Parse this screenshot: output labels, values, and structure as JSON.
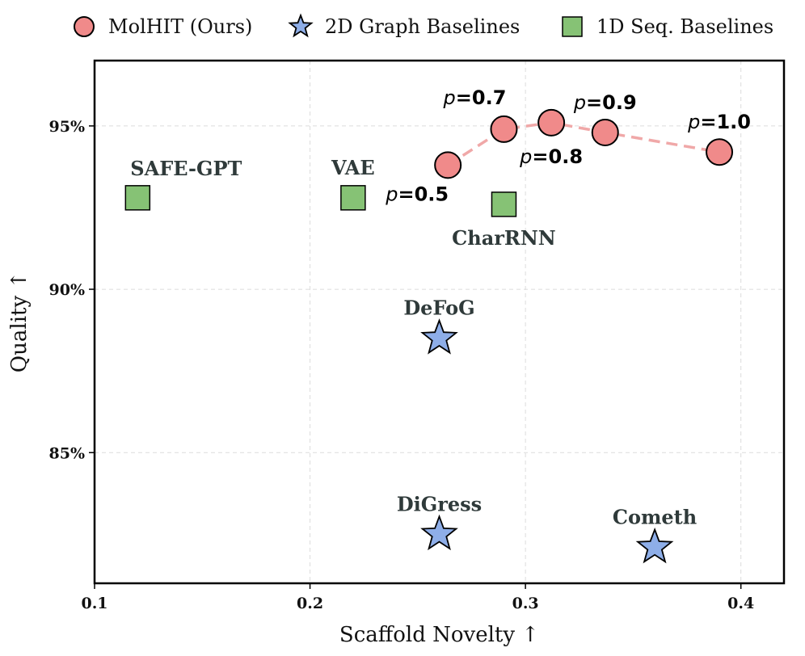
{
  "chart_data": {
    "type": "scatter",
    "xlabel": "Scaffold Novelty",
    "ylabel": "Quality",
    "axis_arrow": "↑",
    "xlim": [
      0.1,
      0.42
    ],
    "ylim": [
      81.0,
      97.0
    ],
    "xticks": [
      0.1,
      0.2,
      0.3,
      0.4
    ],
    "xtick_labels": [
      "0.1",
      "0.2",
      "0.3",
      "0.4"
    ],
    "yticks": [
      85,
      90,
      95
    ],
    "ytick_labels": [
      "85%",
      "90%",
      "95%"
    ],
    "grid": true,
    "legend": {
      "position": "top",
      "entries": [
        {
          "label": "MolHIT (Ours)",
          "marker": "circle",
          "color": "#f08a8a"
        },
        {
          "label": "2D Graph Baselines",
          "marker": "star",
          "color": "#8eaee8"
        },
        {
          "label": "1D Seq. Baselines",
          "marker": "square",
          "color": "#86c275"
        }
      ]
    },
    "series": [
      {
        "name": "MolHIT (Ours)",
        "marker": "circle",
        "color": "#f08a8a",
        "line_color": "#f0a8a8",
        "connected": true,
        "points": [
          {
            "x": 0.264,
            "y": 93.8,
            "label": "0.5",
            "label_pos": "bottom-left"
          },
          {
            "x": 0.29,
            "y": 94.9,
            "label": "0.7",
            "label_pos": "top-left"
          },
          {
            "x": 0.312,
            "y": 95.1,
            "label": "0.8",
            "label_pos": "bottom"
          },
          {
            "x": 0.337,
            "y": 94.8,
            "label": "0.9",
            "label_pos": "top"
          },
          {
            "x": 0.39,
            "y": 94.2,
            "label": "1.0",
            "label_pos": "top"
          }
        ],
        "label_prefix": "p"
      },
      {
        "name": "2D Graph Baselines",
        "marker": "star",
        "color": "#8eaee8",
        "points": [
          {
            "x": 0.26,
            "y": 88.5,
            "label": "DeFoG",
            "label_pos": "top"
          },
          {
            "x": 0.26,
            "y": 82.5,
            "label": "DiGress",
            "label_pos": "top"
          },
          {
            "x": 0.36,
            "y": 82.1,
            "label": "Cometh",
            "label_pos": "top"
          }
        ]
      },
      {
        "name": "1D Seq. Baselines",
        "marker": "square",
        "color": "#86c275",
        "points": [
          {
            "x": 0.12,
            "y": 92.8,
            "label": "SAFE-GPT",
            "label_pos": "top-right"
          },
          {
            "x": 0.22,
            "y": 92.8,
            "label": "VAE",
            "label_pos": "top"
          },
          {
            "x": 0.29,
            "y": 92.6,
            "label": "CharRNN",
            "label_pos": "bottom"
          }
        ]
      }
    ]
  }
}
